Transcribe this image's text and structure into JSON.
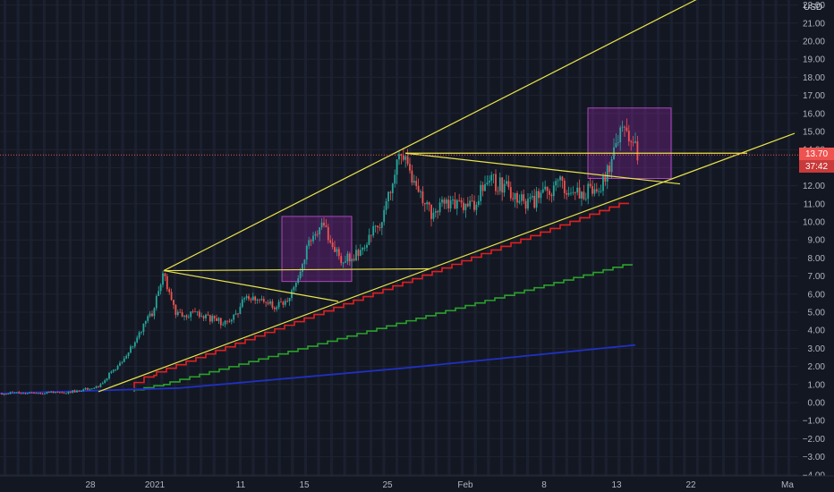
{
  "toolbar": {
    "currency_label": "USD"
  },
  "colors": {
    "background": "#131722",
    "text": "#b2b5be",
    "grid": "#1f2330",
    "up": "#26a69a",
    "down": "#ef5350",
    "trendline": "#e8e34a",
    "box_fill": "#9c27b0",
    "box_stroke": "#ab47bc",
    "ma_red": "#e02020",
    "ma_green": "#2aa02a",
    "ma_blue": "#2030c0",
    "price_line": "#ef5350"
  },
  "price_label": {
    "last_price": "13.70",
    "countdown": "37:42"
  },
  "chart_data": {
    "type": "candlestick",
    "y_axis_ticks": [
      "22.00",
      "21.00",
      "20.00",
      "19.00",
      "18.00",
      "17.00",
      "16.00",
      "15.00",
      "14.00",
      "13.00",
      "12.00",
      "11.00",
      "10.00",
      "9.00",
      "8.00",
      "7.00",
      "6.00",
      "5.00",
      "4.00",
      "3.00",
      "2.00",
      "1.00",
      "0.00",
      "−1.00",
      "−2.00",
      "−3.00",
      "−4.00"
    ],
    "ylim": [
      -4.0,
      22.0
    ],
    "time_axis_ticks": [
      "28",
      "2021",
      "11",
      "15",
      "25",
      "Feb",
      "8",
      "13",
      "22",
      "Ma"
    ],
    "last_price": 13.7,
    "anchors": [
      {
        "t": 0,
        "p": 0.5
      },
      {
        "t": 75,
        "p": 0.55
      },
      {
        "t": 110,
        "p": 0.9
      },
      {
        "t": 140,
        "p": 2.5
      },
      {
        "t": 170,
        "p": 5.0
      },
      {
        "t": 183,
        "p": 7.2
      },
      {
        "t": 195,
        "p": 5.0
      },
      {
        "t": 225,
        "p": 4.8
      },
      {
        "t": 255,
        "p": 4.3
      },
      {
        "t": 275,
        "p": 5.8
      },
      {
        "t": 310,
        "p": 5.3
      },
      {
        "t": 330,
        "p": 6.3
      },
      {
        "t": 345,
        "p": 8.8
      },
      {
        "t": 362,
        "p": 9.8
      },
      {
        "t": 380,
        "p": 7.8
      },
      {
        "t": 405,
        "p": 8.4
      },
      {
        "t": 430,
        "p": 10.5
      },
      {
        "t": 442,
        "p": 13.3
      },
      {
        "t": 453,
        "p": 13.6
      },
      {
        "t": 465,
        "p": 12.0
      },
      {
        "t": 480,
        "p": 10.5
      },
      {
        "t": 500,
        "p": 11.0
      },
      {
        "t": 530,
        "p": 10.8
      },
      {
        "t": 542,
        "p": 12.5
      },
      {
        "t": 560,
        "p": 12.0
      },
      {
        "t": 590,
        "p": 11.0
      },
      {
        "t": 625,
        "p": 12.1
      },
      {
        "t": 650,
        "p": 11.5
      },
      {
        "t": 673,
        "p": 12.0
      },
      {
        "t": 680,
        "p": 13.0
      },
      {
        "t": 688,
        "p": 14.6
      },
      {
        "t": 700,
        "p": 15.3
      },
      {
        "t": 713,
        "p": 13.7
      }
    ],
    "moving_averages": [
      {
        "color_key": "ma_red",
        "points": [
          {
            "t": 150,
            "p": 0.8
          },
          {
            "t": 175,
            "p": 1.5
          },
          {
            "t": 713,
            "p": 11.2
          }
        ]
      },
      {
        "color_key": "ma_green",
        "points": [
          {
            "t": 150,
            "p": 0.6
          },
          {
            "t": 190,
            "p": 1.0
          },
          {
            "t": 713,
            "p": 7.7
          }
        ]
      },
      {
        "color_key": "ma_blue",
        "points": [
          {
            "t": 0,
            "p": 0.5
          },
          {
            "t": 200,
            "p": 0.8
          },
          {
            "t": 450,
            "p": 1.9
          },
          {
            "t": 713,
            "p": 3.2
          }
        ]
      }
    ],
    "trendlines": [
      {
        "from": {
          "t": 110,
          "p": 0.6
        },
        "to": {
          "t": 888,
          "p": 14.9
        }
      },
      {
        "from": {
          "t": 183,
          "p": 7.3
        },
        "to": {
          "t": 790,
          "p": 22.6
        }
      },
      {
        "from": {
          "t": 183,
          "p": 7.3
        },
        "to": {
          "t": 480,
          "p": 7.4
        }
      },
      {
        "from": {
          "t": 183,
          "p": 7.3
        },
        "to": {
          "t": 378,
          "p": 5.6
        }
      },
      {
        "from": {
          "t": 453,
          "p": 13.8
        },
        "to": {
          "t": 835,
          "p": 13.8
        }
      },
      {
        "from": {
          "t": 453,
          "p": 13.8
        },
        "to": {
          "t": 760,
          "p": 12.1
        }
      }
    ],
    "highlight_boxes": [
      {
        "t1": 315,
        "t2": 393,
        "p_top": 10.3,
        "p_bottom": 6.7
      },
      {
        "t1": 657,
        "t2": 750,
        "p_top": 16.3,
        "p_bottom": 12.4
      }
    ]
  }
}
